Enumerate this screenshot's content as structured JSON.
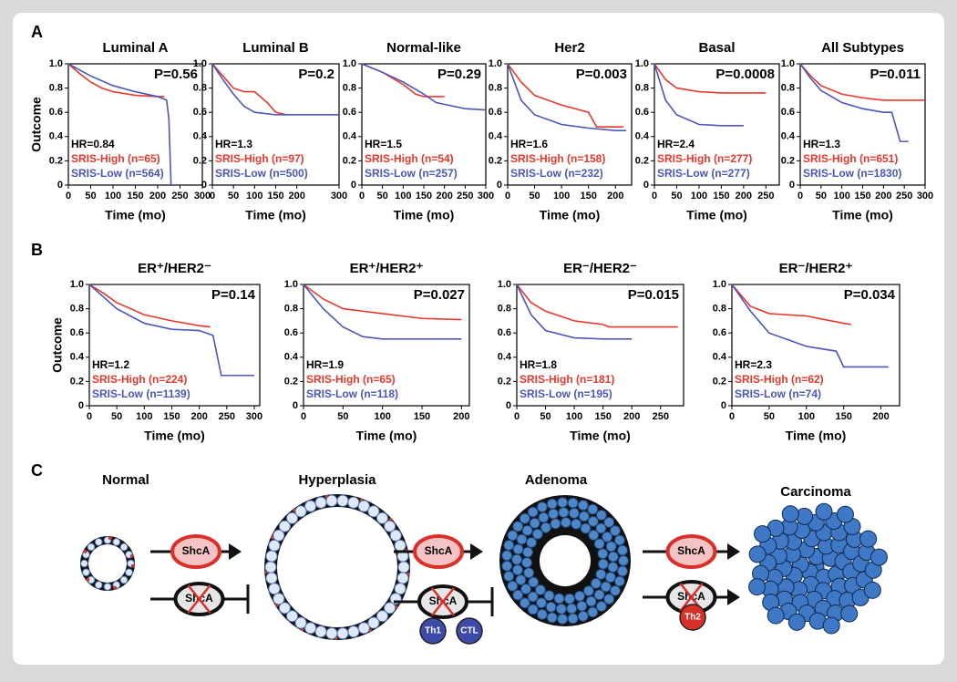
{
  "panel_labels": [
    "A",
    "B",
    "C"
  ],
  "chart_data": [
    {
      "type": "line",
      "title": "Luminal A",
      "y_label": "Outcome",
      "x_label": "Time (mo)",
      "p_value": "P=0.56",
      "hr": "HR=0.84",
      "legend": "lower left",
      "xlim": [
        0,
        300
      ],
      "ylim": [
        0,
        1
      ],
      "xticks": [
        0,
        50,
        100,
        150,
        200,
        250,
        300
      ],
      "yticks": [
        0,
        0.2,
        0.4,
        0.6,
        0.8,
        {
          "value": 1,
          "label": "1.0"
        }
      ],
      "series": [
        {
          "name": "SRIS-High (n=65)",
          "color": "#e8372b",
          "x": [
            0,
            25,
            50,
            75,
            100,
            150,
            200,
            215
          ],
          "values": [
            1,
            0.92,
            0.85,
            0.8,
            0.77,
            0.74,
            0.73,
            0.73
          ]
        },
        {
          "name": "SRIS-Low (n=564)",
          "color": "#4a56b8",
          "x": [
            0,
            25,
            50,
            100,
            150,
            200,
            220,
            225,
            230
          ],
          "values": [
            1,
            0.95,
            0.9,
            0.82,
            0.77,
            0.73,
            0.7,
            0.55,
            0
          ]
        }
      ]
    },
    {
      "type": "line",
      "title": "Luminal B",
      "x_label": "Time (mo)",
      "p_value": "P=0.2",
      "hr": "HR=1.3",
      "legend": "lower left",
      "xlim": [
        0,
        300
      ],
      "ylim": [
        0,
        1
      ],
      "xticks": [
        0,
        50,
        100,
        150,
        200,
        300
      ],
      "yticks": [
        0,
        0.2,
        0.4,
        0.6,
        0.8,
        {
          "value": 1,
          "label": "1.0"
        }
      ],
      "series": [
        {
          "name": "SRIS-High (n=97)",
          "color": "#e8372b",
          "x": [
            0,
            25,
            50,
            75,
            100,
            130,
            150,
            175
          ],
          "values": [
            1,
            0.9,
            0.8,
            0.77,
            0.77,
            0.68,
            0.6,
            0.58
          ]
        },
        {
          "name": "SRIS-Low (n=500)",
          "color": "#4a56b8",
          "x": [
            0,
            25,
            50,
            75,
            100,
            150,
            200,
            300
          ],
          "values": [
            1,
            0.87,
            0.75,
            0.65,
            0.6,
            0.58,
            0.58,
            0.58
          ]
        }
      ]
    },
    {
      "type": "line",
      "title": "Normal-like",
      "x_label": "Time (mo)",
      "p_value": "P=0.29",
      "hr": "HR=1.5",
      "legend": "lower left",
      "xlim": [
        0,
        300
      ],
      "ylim": [
        0,
        1
      ],
      "xticks": [
        0,
        50,
        100,
        150,
        200,
        250,
        300
      ],
      "yticks": [
        0,
        0.2,
        0.4,
        0.6,
        0.8,
        {
          "value": 1,
          "label": "1.0"
        }
      ],
      "series": [
        {
          "name": "SRIS-High (n=54)",
          "color": "#e8372b",
          "x": [
            0,
            50,
            100,
            130,
            150,
            200
          ],
          "values": [
            1,
            0.93,
            0.83,
            0.75,
            0.73,
            0.73
          ]
        },
        {
          "name": "SRIS-Low (n=257)",
          "color": "#4a56b8",
          "x": [
            0,
            50,
            100,
            150,
            180,
            250,
            300
          ],
          "values": [
            1,
            0.93,
            0.85,
            0.75,
            0.68,
            0.63,
            0.62
          ]
        }
      ]
    },
    {
      "type": "line",
      "title": "Her2",
      "x_label": "Time (mo)",
      "p_value": "P=0.003",
      "hr": "HR=1.6",
      "legend": "lower left",
      "xlim": [
        0,
        230
      ],
      "ylim": [
        0,
        1
      ],
      "xticks": [
        0,
        50,
        100,
        150,
        200
      ],
      "yticks": [
        0,
        0.2,
        0.4,
        0.6,
        0.8,
        {
          "value": 1,
          "label": "1.0"
        }
      ],
      "series": [
        {
          "name": "SRIS-High (n=158)",
          "color": "#e8372b",
          "x": [
            0,
            25,
            50,
            100,
            150,
            165,
            215
          ],
          "values": [
            1,
            0.85,
            0.74,
            0.66,
            0.6,
            0.48,
            0.48
          ]
        },
        {
          "name": "SRIS-Low (n=232)",
          "color": "#4a56b8",
          "x": [
            0,
            25,
            50,
            100,
            150,
            200,
            220
          ],
          "values": [
            1,
            0.7,
            0.58,
            0.5,
            0.47,
            0.45,
            0.45
          ]
        }
      ]
    },
    {
      "type": "line",
      "title": "Basal",
      "x_label": "Time (mo)",
      "p_value": "P=0.0008",
      "hr": "HR=2.4",
      "legend": "lower left",
      "xlim": [
        0,
        280
      ],
      "ylim": [
        0,
        1
      ],
      "xticks": [
        0,
        50,
        100,
        150,
        200,
        250
      ],
      "yticks": [
        0,
        0.2,
        0.4,
        0.6,
        0.8,
        {
          "value": 1,
          "label": "1.0"
        }
      ],
      "series": [
        {
          "name": "SRIS-High (n=277)",
          "color": "#e8372b",
          "x": [
            0,
            25,
            50,
            100,
            150,
            200,
            250
          ],
          "values": [
            1,
            0.87,
            0.8,
            0.77,
            0.76,
            0.76,
            0.76
          ]
        },
        {
          "name": "SRIS-Low (n=277)",
          "color": "#4a56b8",
          "x": [
            0,
            25,
            50,
            100,
            150,
            200
          ],
          "values": [
            1,
            0.7,
            0.58,
            0.5,
            0.49,
            0.49
          ]
        }
      ]
    },
    {
      "type": "line",
      "title": "All Subtypes",
      "x_label": "Time (mo)",
      "p_value": "P=0.011",
      "hr": "HR=1.3",
      "legend": "lower left",
      "xlim": [
        0,
        300
      ],
      "ylim": [
        0,
        1
      ],
      "xticks": [
        0,
        50,
        100,
        150,
        200,
        250,
        300
      ],
      "yticks": [
        0,
        0.2,
        0.4,
        0.6,
        0.8,
        {
          "value": 1,
          "label": "1.0"
        }
      ],
      "series": [
        {
          "name": "SRIS-High (n=651)",
          "color": "#e8372b",
          "x": [
            0,
            25,
            50,
            100,
            150,
            200,
            240,
            300
          ],
          "values": [
            1,
            0.9,
            0.82,
            0.75,
            0.72,
            0.7,
            0.7,
            0.7
          ]
        },
        {
          "name": "SRIS-Low (n=1830)",
          "color": "#4a56b8",
          "x": [
            0,
            25,
            50,
            100,
            150,
            200,
            220,
            240,
            260
          ],
          "values": [
            1,
            0.88,
            0.78,
            0.68,
            0.63,
            0.6,
            0.6,
            0.36,
            0.36
          ]
        }
      ]
    },
    {
      "type": "line",
      "title": "ER⁺/HER2⁻",
      "y_label": "Outcome",
      "x_label": "Time (mo)",
      "p_value": "P=0.14",
      "hr": "HR=1.2",
      "legend": "lower left",
      "xlim": [
        0,
        310
      ],
      "ylim": [
        0,
        1
      ],
      "xticks": [
        0,
        50,
        100,
        150,
        200,
        250,
        300
      ],
      "yticks": [
        0,
        0.2,
        0.4,
        0.6,
        0.8,
        {
          "value": 1,
          "label": "1.0"
        }
      ],
      "series": [
        {
          "name": "SRIS-High (n=224)",
          "color": "#e8372b",
          "x": [
            0,
            25,
            50,
            100,
            150,
            200,
            220
          ],
          "values": [
            1,
            0.93,
            0.85,
            0.75,
            0.7,
            0.66,
            0.65
          ]
        },
        {
          "name": "SRIS-Low (n=1139)",
          "color": "#4a56b8",
          "x": [
            0,
            25,
            50,
            100,
            150,
            200,
            225,
            240,
            300
          ],
          "values": [
            1,
            0.9,
            0.8,
            0.68,
            0.63,
            0.62,
            0.58,
            0.25,
            0.25
          ]
        }
      ]
    },
    {
      "type": "line",
      "title": "ER⁺/HER2⁺",
      "x_label": "Time (mo)",
      "p_value": "P=0.027",
      "hr": "HR=1.9",
      "legend": "lower left",
      "xlim": [
        0,
        210
      ],
      "ylim": [
        0,
        1
      ],
      "xticks": [
        0,
        50,
        100,
        150,
        200
      ],
      "yticks": [
        0,
        0.2,
        0.4,
        0.6,
        0.8,
        {
          "value": 1,
          "label": "1.0"
        }
      ],
      "series": [
        {
          "name": "SRIS-High (n=65)",
          "color": "#e8372b",
          "x": [
            0,
            25,
            50,
            75,
            100,
            150,
            200
          ],
          "values": [
            1,
            0.88,
            0.8,
            0.78,
            0.76,
            0.72,
            0.71
          ]
        },
        {
          "name": "SRIS-Low (n=118)",
          "color": "#4a56b8",
          "x": [
            0,
            25,
            50,
            75,
            100,
            150,
            200
          ],
          "values": [
            1,
            0.8,
            0.65,
            0.57,
            0.55,
            0.55,
            0.55
          ]
        }
      ]
    },
    {
      "type": "line",
      "title": "ER⁻/HER2⁻",
      "x_label": "Time (mo)",
      "p_value": "P=0.015",
      "hr": "HR=1.8",
      "legend": "lower left",
      "xlim": [
        0,
        290
      ],
      "ylim": [
        0,
        1
      ],
      "xticks": [
        0,
        50,
        100,
        150,
        200,
        250
      ],
      "yticks": [
        0,
        0.2,
        0.4,
        0.6,
        0.8,
        {
          "value": 1,
          "label": "1.0"
        }
      ],
      "series": [
        {
          "name": "SRIS-High (n=181)",
          "color": "#e8372b",
          "x": [
            0,
            25,
            50,
            100,
            150,
            160,
            280
          ],
          "values": [
            1,
            0.85,
            0.78,
            0.7,
            0.67,
            0.65,
            0.65
          ]
        },
        {
          "name": "SRIS-Low (n=195)",
          "color": "#4a56b8",
          "x": [
            0,
            25,
            50,
            100,
            150,
            200
          ],
          "values": [
            1,
            0.75,
            0.62,
            0.56,
            0.55,
            0.55
          ]
        }
      ]
    },
    {
      "type": "line",
      "title": "ER⁻/HER2⁺",
      "x_label": "Time (mo)",
      "p_value": "P=0.034",
      "hr": "HR=2.3",
      "legend": "lower left",
      "xlim": [
        0,
        225
      ],
      "ylim": [
        0,
        1
      ],
      "xticks": [
        0,
        50,
        100,
        150,
        200
      ],
      "yticks": [
        0,
        0.2,
        0.4,
        0.6,
        0.8,
        {
          "value": 1,
          "label": "1.0"
        }
      ],
      "series": [
        {
          "name": "SRIS-High (n=62)",
          "color": "#e8372b",
          "x": [
            0,
            25,
            50,
            75,
            100,
            150,
            160
          ],
          "values": [
            1,
            0.82,
            0.76,
            0.75,
            0.74,
            0.68,
            0.67
          ]
        },
        {
          "name": "SRIS-Low (n=74)",
          "color": "#4a56b8",
          "x": [
            0,
            25,
            50,
            100,
            140,
            150,
            210
          ],
          "values": [
            1,
            0.78,
            0.6,
            0.49,
            0.45,
            0.32,
            0.32
          ]
        }
      ]
    }
  ],
  "diagram": {
    "stages": [
      "Normal",
      "Hyperplasia",
      "Adenoma",
      "Carcinoma"
    ],
    "arrow_labels": [
      "ShcA",
      "ShcA",
      "ShcA",
      "ShcA",
      "ShcA",
      "ShcA"
    ],
    "immune_cells": [
      "Th1",
      "CTL",
      "Th2"
    ]
  }
}
